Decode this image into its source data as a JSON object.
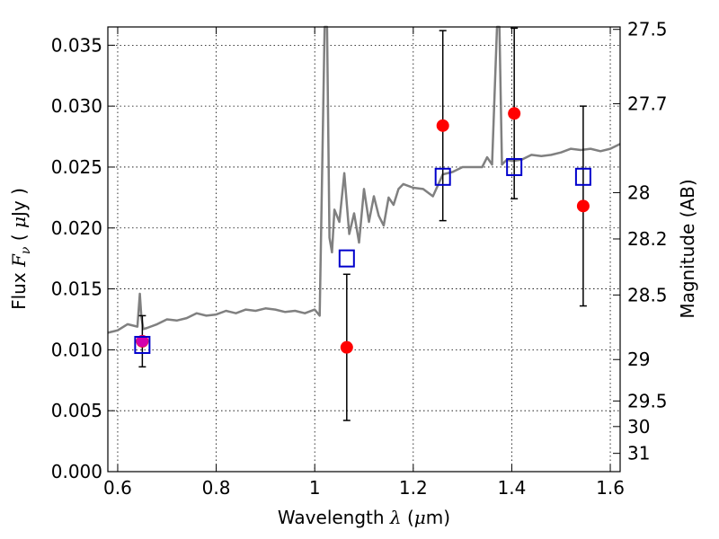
{
  "chart_data": {
    "type": "scatter",
    "title": "",
    "xlabel_prefix": "Wavelength  ",
    "xlabel_symbol": "λ",
    "xlabel_suffix": " (",
    "xlabel_unit_mu": "μ",
    "xlabel_unit": "m)",
    "ylabel_prefix": "Flux  ",
    "ylabel_symbol": "F",
    "ylabel_sub": "ν",
    "ylabel_suffix": "  ( ",
    "ylabel_unit_mu": "μ",
    "ylabel_unit": "Jy )",
    "y2label": "Magnitude (AB)",
    "xlim": [
      0.58,
      1.62
    ],
    "ylim": [
      0.0,
      0.0365
    ],
    "grid": true,
    "x_ticks": [
      0.6,
      0.8,
      1.0,
      1.2,
      1.4,
      1.6
    ],
    "x_tick_labels": [
      "0.6",
      "0.8",
      "1",
      "1.2",
      "1.4",
      "1.6"
    ],
    "y_ticks": [
      0.0,
      0.005,
      0.01,
      0.015,
      0.02,
      0.025,
      0.03,
      0.035
    ],
    "y_tick_labels": [
      "0.000",
      "0.005",
      "0.010",
      "0.015",
      "0.020",
      "0.025",
      "0.030",
      "0.035"
    ],
    "mag_ticks": [
      {
        "label": "27.5",
        "flux": 0.0363
      },
      {
        "label": "27.7",
        "flux": 0.0302
      },
      {
        "label": "28",
        "flux": 0.0229
      },
      {
        "label": "28.2",
        "flux": 0.0191
      },
      {
        "label": "28.5",
        "flux": 0.0145
      },
      {
        "label": "29",
        "flux": 0.0092
      },
      {
        "label": "29.5",
        "flux": 0.0058
      },
      {
        "label": "30",
        "flux": 0.0037
      },
      {
        "label": "31",
        "flux": 0.0015
      }
    ],
    "series": [
      {
        "kind": "line",
        "color": "#808080",
        "x": [
          0.58,
          0.6,
          0.62,
          0.64,
          0.645,
          0.648,
          0.652,
          0.66,
          0.68,
          0.7,
          0.72,
          0.74,
          0.76,
          0.78,
          0.8,
          0.82,
          0.84,
          0.86,
          0.88,
          0.9,
          0.92,
          0.94,
          0.96,
          0.98,
          1.0,
          1.01,
          1.02,
          1.025,
          1.03,
          1.035,
          1.04,
          1.05,
          1.06,
          1.07,
          1.08,
          1.09,
          1.1,
          1.11,
          1.12,
          1.13,
          1.14,
          1.15,
          1.16,
          1.17,
          1.18,
          1.2,
          1.22,
          1.24,
          1.26,
          1.28,
          1.3,
          1.32,
          1.34,
          1.35,
          1.36,
          1.37,
          1.375,
          1.38,
          1.39,
          1.4,
          1.42,
          1.44,
          1.46,
          1.48,
          1.5,
          1.52,
          1.54,
          1.56,
          1.58,
          1.6,
          1.62
        ],
        "y": [
          0.0114,
          0.0116,
          0.0121,
          0.0119,
          0.0146,
          0.0127,
          0.0117,
          0.0118,
          0.0121,
          0.0125,
          0.0124,
          0.0126,
          0.013,
          0.0128,
          0.0129,
          0.0132,
          0.013,
          0.0133,
          0.0132,
          0.0134,
          0.0133,
          0.0131,
          0.0132,
          0.013,
          0.0133,
          0.0128,
          0.0365,
          0.0365,
          0.0192,
          0.018,
          0.0215,
          0.0205,
          0.0245,
          0.0195,
          0.0212,
          0.0188,
          0.0232,
          0.0205,
          0.0226,
          0.021,
          0.0202,
          0.0225,
          0.0219,
          0.0232,
          0.0236,
          0.0233,
          0.0232,
          0.0226,
          0.0244,
          0.0246,
          0.025,
          0.025,
          0.025,
          0.0258,
          0.0252,
          0.0365,
          0.0365,
          0.0252,
          0.0256,
          0.0255,
          0.0256,
          0.026,
          0.0259,
          0.026,
          0.0262,
          0.0265,
          0.0264,
          0.0265,
          0.0263,
          0.0265,
          0.0269
        ]
      },
      {
        "kind": "points-errorbars",
        "marker": "circle",
        "color": "#ff0000",
        "x": [
          0.65,
          1.065,
          1.26,
          1.405,
          1.545
        ],
        "y": [
          0.0107,
          0.0102,
          0.0284,
          0.0294,
          0.0218
        ],
        "yerr_low": [
          0.0021,
          0.006,
          0.0078,
          0.007,
          0.0082
        ],
        "yerr_high": [
          0.0021,
          0.006,
          0.0078,
          0.007,
          0.0082
        ]
      },
      {
        "kind": "points",
        "marker": "square-open",
        "color": "#0000cc",
        "x": [
          0.65,
          1.065,
          1.26,
          1.405,
          1.545
        ],
        "y": [
          0.0104,
          0.0175,
          0.0242,
          0.025,
          0.0242
        ]
      }
    ],
    "highlight_point": {
      "x": 0.65,
      "y": 0.0107,
      "color": "#cc00cc"
    }
  }
}
